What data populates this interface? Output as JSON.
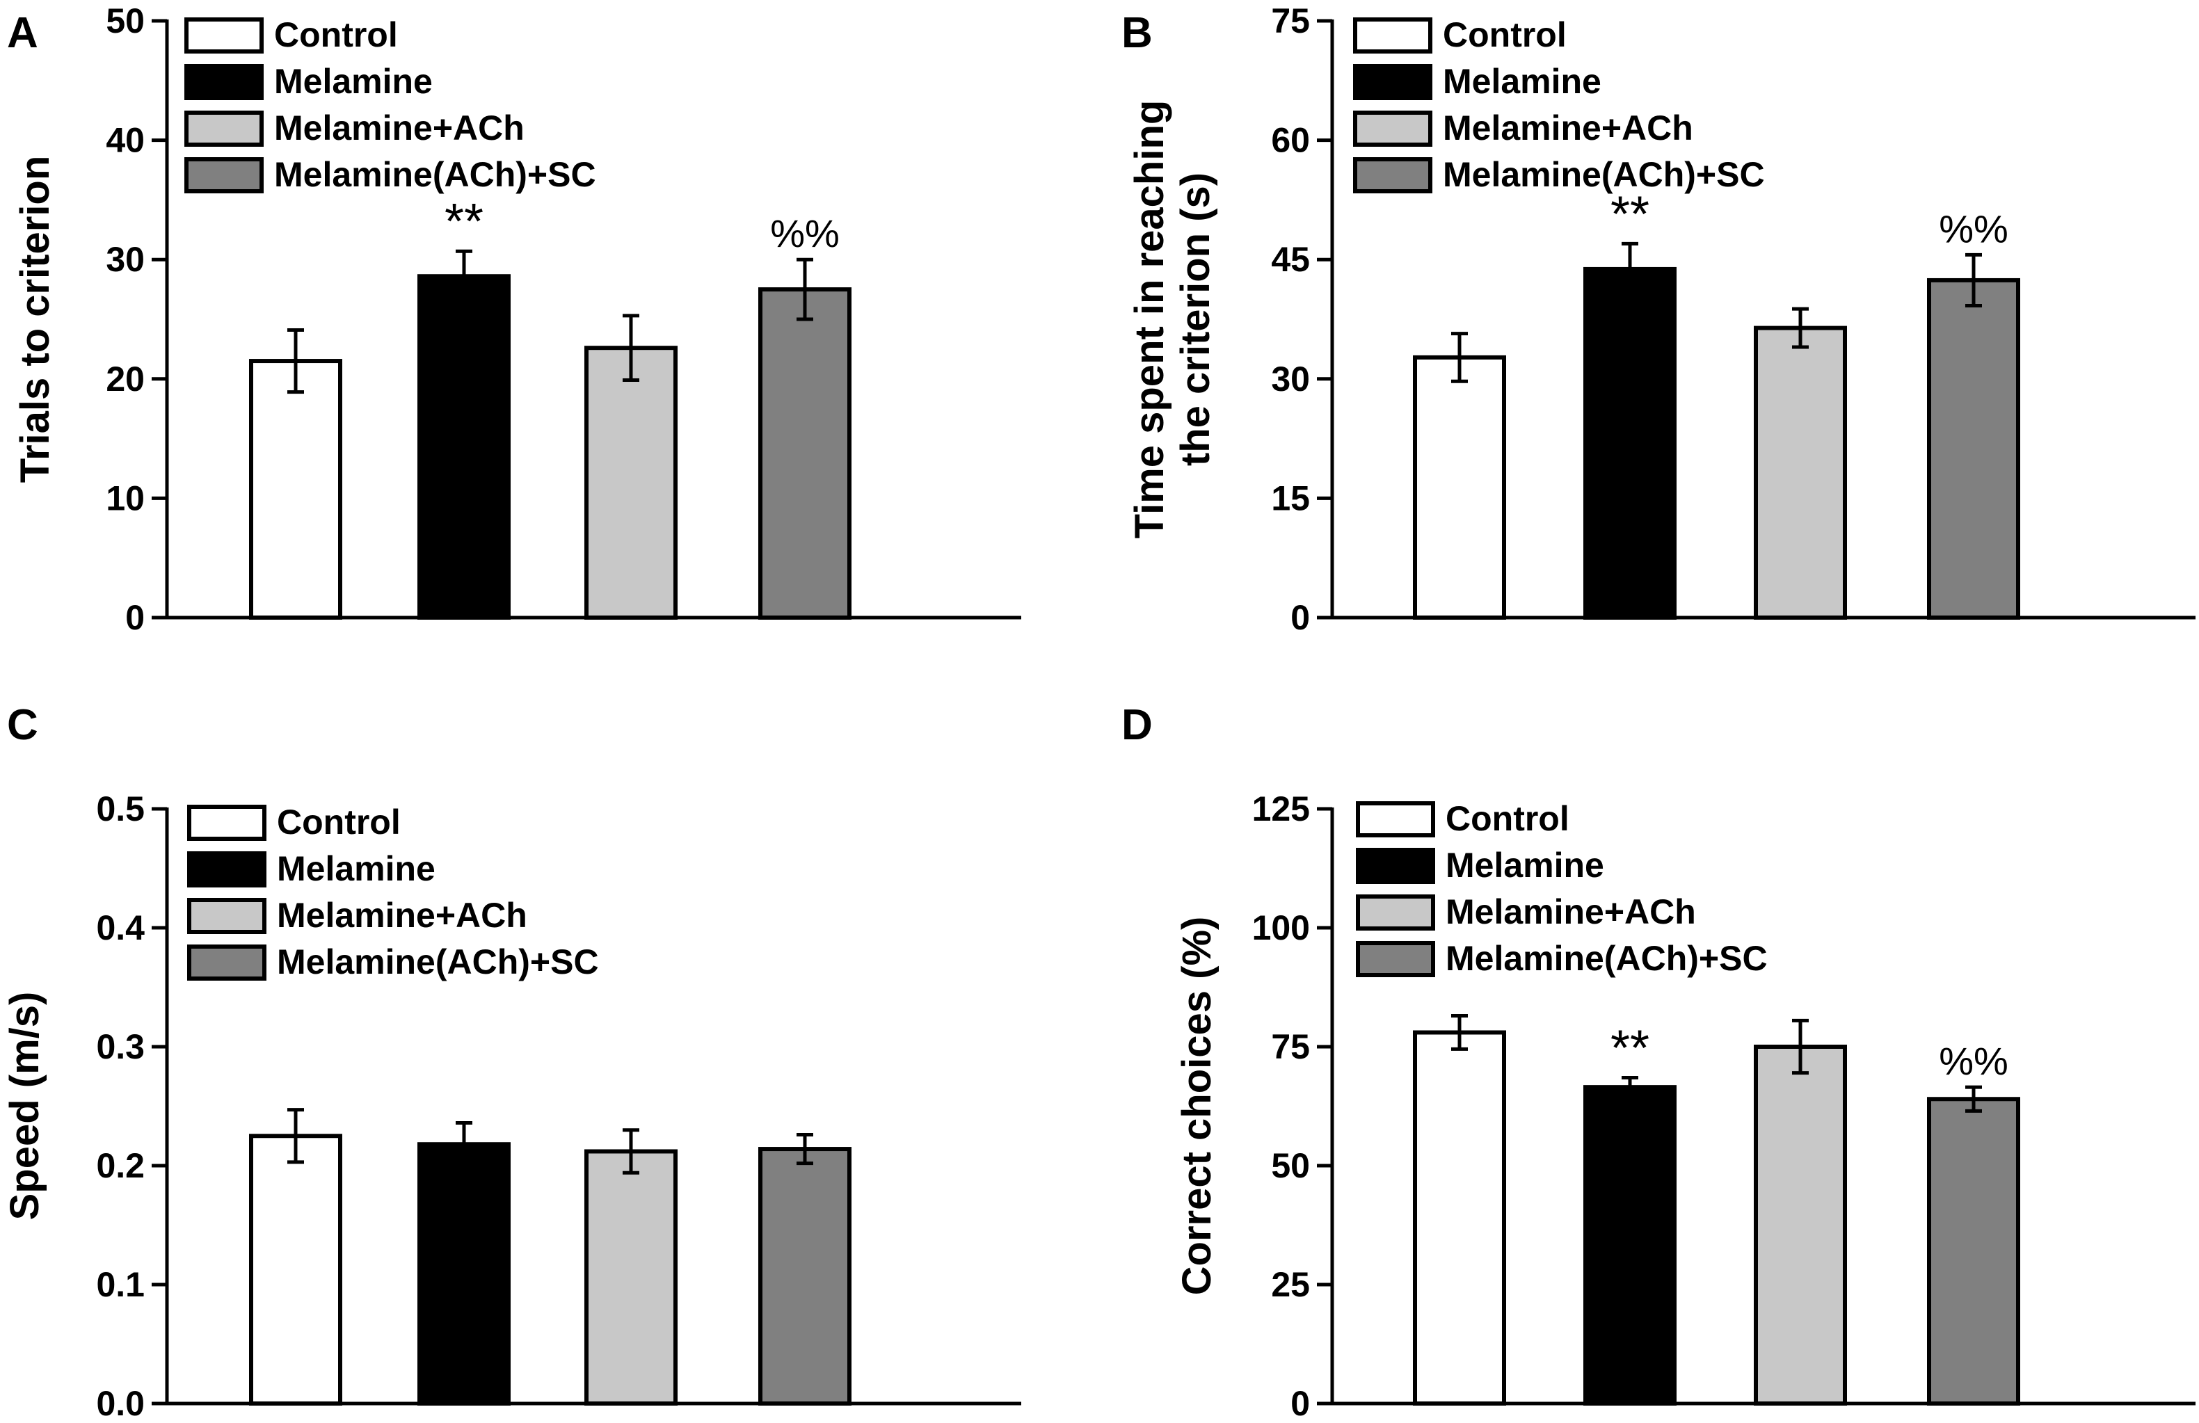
{
  "figure": {
    "legend_entries": [
      {
        "label": "Control",
        "color": "#ffffff"
      },
      {
        "label": "Melamine",
        "color": "#000000"
      },
      {
        "label": "Melamine+ACh",
        "color": "#c8c8c8"
      },
      {
        "label": "Melamine(ACh)+SC",
        "color": "#808080"
      }
    ]
  },
  "chart_data": [
    {
      "panel": "A",
      "type": "bar",
      "title": "",
      "xlabel": "",
      "ylabel": "Trials to criterion",
      "ylim": [
        0,
        50
      ],
      "yticks": [
        0,
        10,
        20,
        30,
        40,
        50
      ],
      "ytick_labels": [
        "0",
        "10",
        "20",
        "30",
        "40",
        "50"
      ],
      "categories": [
        "Control",
        "Melamine",
        "Melamine+ACh",
        "Melamine(ACh)+SC"
      ],
      "colors": [
        "#ffffff",
        "#000000",
        "#c8c8c8",
        "#808080"
      ],
      "values": [
        21.5,
        28.6,
        22.6,
        27.5
      ],
      "errors": [
        2.6,
        2.1,
        2.7,
        2.5
      ],
      "annotations": [
        "",
        "**",
        "",
        "%%"
      ],
      "legend": "top-left"
    },
    {
      "panel": "B",
      "type": "bar",
      "title": "",
      "xlabel": "",
      "ylabel": "Time spent in reaching the criterion (s)",
      "ylabel_lines": [
        "Time spent in reaching",
        "the criterion (s)"
      ],
      "ylim": [
        0,
        75
      ],
      "yticks": [
        0,
        15,
        30,
        45,
        60,
        75
      ],
      "ytick_labels": [
        "0",
        "15",
        "30",
        "45",
        "60",
        "75"
      ],
      "categories": [
        "Control",
        "Melamine",
        "Melamine+ACh",
        "Melamine(ACh)+SC"
      ],
      "colors": [
        "#ffffff",
        "#000000",
        "#c8c8c8",
        "#808080"
      ],
      "values": [
        32.7,
        43.8,
        36.4,
        42.4
      ],
      "errors": [
        3.0,
        3.2,
        2.4,
        3.2
      ],
      "annotations": [
        "",
        "**",
        "",
        "%%"
      ],
      "legend": "top-left"
    },
    {
      "panel": "C",
      "type": "bar",
      "title": "",
      "xlabel": "",
      "ylabel": "Speed (m/s)",
      "ylim": [
        0,
        0.5
      ],
      "yticks": [
        0,
        0.1,
        0.2,
        0.3,
        0.4,
        0.5
      ],
      "ytick_labels": [
        "0.0",
        "0.1",
        "0.2",
        "0.3",
        "0.4",
        "0.5"
      ],
      "categories": [
        "Control",
        "Melamine",
        "Melamine+ACh",
        "Melamine(ACh)+SC"
      ],
      "colors": [
        "#ffffff",
        "#000000",
        "#c8c8c8",
        "#808080"
      ],
      "values": [
        0.225,
        0.218,
        0.212,
        0.214
      ],
      "errors": [
        0.022,
        0.018,
        0.018,
        0.012
      ],
      "annotations": [
        "",
        "",
        "",
        ""
      ],
      "legend": "top-left"
    },
    {
      "panel": "D",
      "type": "bar",
      "title": "",
      "xlabel": "",
      "ylabel": "Correct choices (%)",
      "ylim": [
        0,
        125
      ],
      "yticks": [
        0,
        25,
        50,
        75,
        100,
        125
      ],
      "ytick_labels": [
        "0",
        "25",
        "50",
        "75",
        "100",
        "125"
      ],
      "categories": [
        "Control",
        "Melamine",
        "Melamine+ACh",
        "Melamine(ACh)+SC"
      ],
      "colors": [
        "#ffffff",
        "#000000",
        "#c8c8c8",
        "#808080"
      ],
      "values": [
        78.0,
        66.5,
        75.0,
        64.0
      ],
      "errors": [
        3.5,
        2.0,
        5.5,
        2.5
      ],
      "annotations": [
        "",
        "**",
        "",
        "%%"
      ],
      "legend": "top-left"
    }
  ]
}
